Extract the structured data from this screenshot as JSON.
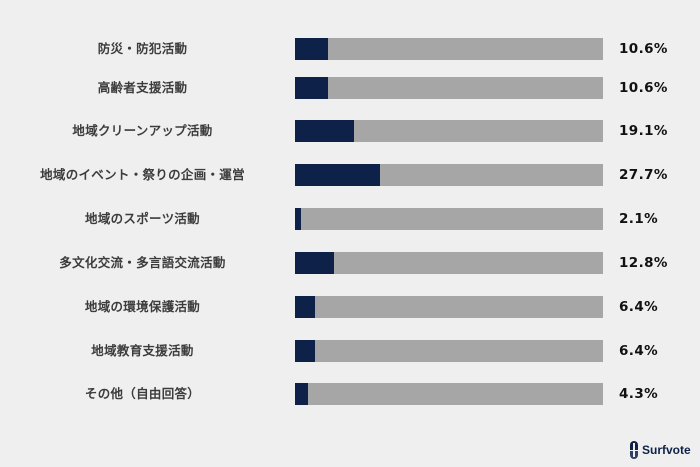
{
  "chart_data": {
    "type": "bar",
    "orientation": "horizontal",
    "stacked_track": true,
    "title": "",
    "xlabel": "",
    "ylabel": "",
    "xlim": [
      0,
      100
    ],
    "grid": false,
    "legend": null,
    "categories": [
      "防災・防犯活動",
      "高齢者支援活動",
      "地域クリーンアップ活動",
      "地域のイベント・祭りの企画・運営",
      "地域のスポーツ活動",
      "多文化交流・多言語交流活動",
      "地域の環境保護活動",
      "地域教育支援活動",
      "その他（自由回答）"
    ],
    "values": [
      10.6,
      10.6,
      19.1,
      27.7,
      2.1,
      12.8,
      6.4,
      6.4,
      4.3
    ],
    "value_labels": [
      "10.6%",
      "10.6%",
      "19.1%",
      "27.7%",
      "2.1%",
      "12.8%",
      "6.4%",
      "6.4%",
      "4.3%"
    ],
    "colors": {
      "fill": "#0d2149",
      "track": "#a6a6a6",
      "background": "#efefef"
    }
  },
  "rows": [
    {
      "label": "防災・防犯活動",
      "value": 10.6,
      "value_label": "10.6%"
    },
    {
      "label": "高齢者支援活動",
      "value": 10.6,
      "value_label": "10.6%"
    },
    {
      "label": "地域クリーンアップ活動",
      "value": 19.1,
      "value_label": "19.1%"
    },
    {
      "label": "地域のイベント・祭りの企画・運営",
      "value": 27.7,
      "value_label": "27.7%"
    },
    {
      "label": "地域のスポーツ活動",
      "value": 2.1,
      "value_label": "2.1%"
    },
    {
      "label": "多文化交流・多言語交流活動",
      "value": 12.8,
      "value_label": "12.8%"
    },
    {
      "label": "地域の環境保護活動",
      "value": 6.4,
      "value_label": "6.4%"
    },
    {
      "label": "地域教育支援活動",
      "value": 6.4,
      "value_label": "6.4%"
    },
    {
      "label": "その他（自由回答）",
      "value": 4.3,
      "value_label": "4.3%"
    }
  ],
  "brand": {
    "name": "Surfvote",
    "icon": "surfvote-logo-icon"
  }
}
